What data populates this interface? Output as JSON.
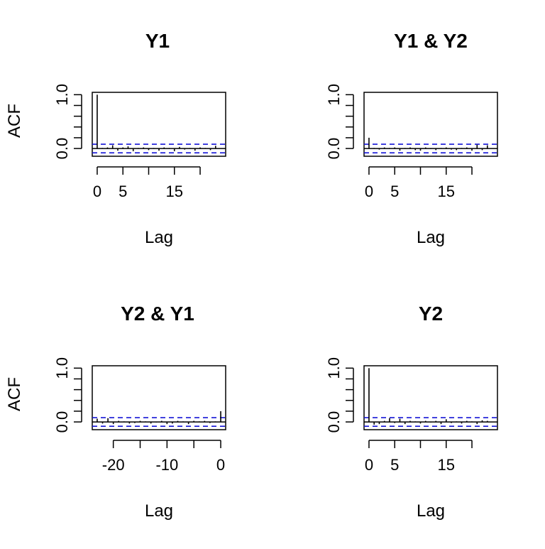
{
  "chart_data": [
    {
      "type": "bar",
      "title": "Y1",
      "xlabel": "Lag",
      "ylabel": "ACF",
      "xlim": [
        0,
        24
      ],
      "ylim": [
        -0.1,
        1.0
      ],
      "xticks": [
        0,
        5,
        10,
        15,
        20
      ],
      "xtick_labels": [
        "0",
        "5",
        "",
        "15",
        ""
      ],
      "yticks": [
        0.0,
        0.2,
        0.4,
        0.6,
        0.8,
        1.0
      ],
      "ytick_labels": [
        "0.0",
        "",
        "",
        "",
        "",
        "1.0"
      ],
      "conf_limit": 0.08,
      "lags": [
        0,
        1,
        2,
        3,
        4,
        5,
        6,
        7,
        8,
        9,
        10,
        11,
        12,
        13,
        14,
        15,
        16,
        17,
        18,
        19,
        20,
        21,
        22,
        23
      ],
      "values": [
        1.0,
        0.01,
        0.02,
        0.06,
        -0.04,
        0.02,
        0.04,
        -0.05,
        0.01,
        0.02,
        -0.03,
        0.01,
        -0.04,
        0.02,
        0.01,
        -0.05,
        0.03,
        -0.02,
        0.01,
        -0.04,
        0.02,
        0.01,
        -0.03,
        0.05
      ]
    },
    {
      "type": "bar",
      "title": "Y1 & Y2",
      "xlabel": "Lag",
      "ylabel": "",
      "xlim": [
        0,
        24
      ],
      "ylim": [
        -0.1,
        1.0
      ],
      "xticks": [
        0,
        5,
        10,
        15,
        20
      ],
      "xtick_labels": [
        "0",
        "5",
        "",
        "15",
        ""
      ],
      "yticks": [
        0.0,
        0.2,
        0.4,
        0.6,
        0.8,
        1.0
      ],
      "ytick_labels": [
        "0.0",
        "",
        "",
        "",
        "",
        "1.0"
      ],
      "conf_limit": 0.08,
      "lags": [
        0,
        1,
        2,
        3,
        4,
        5,
        6,
        7,
        8,
        9,
        10,
        11,
        12,
        13,
        14,
        15,
        16,
        17,
        18,
        19,
        20,
        21,
        22,
        23
      ],
      "values": [
        0.2,
        0.01,
        -0.02,
        0.02,
        0.01,
        0.02,
        -0.04,
        0.01,
        0.02,
        -0.03,
        -0.04,
        0.02,
        -0.01,
        -0.03,
        0.01,
        0.02,
        -0.02,
        -0.03,
        0.01,
        0.02,
        -0.04,
        0.07,
        -0.03,
        0.06
      ]
    },
    {
      "type": "bar",
      "title": "Y2 & Y1",
      "xlabel": "Lag",
      "ylabel": "ACF",
      "xlim": [
        -23,
        0
      ],
      "ylim": [
        -0.1,
        1.0
      ],
      "xticks": [
        -20,
        -15,
        -10,
        -5,
        0
      ],
      "xtick_labels": [
        "-20",
        "",
        "-10",
        "",
        "0"
      ],
      "yticks": [
        0.0,
        0.2,
        0.4,
        0.6,
        0.8,
        1.0
      ],
      "ytick_labels": [
        "0.0",
        "",
        "",
        "",
        "",
        "1.0"
      ],
      "conf_limit": 0.08,
      "lags": [
        -23,
        -22,
        -21,
        -20,
        -19,
        -18,
        -17,
        -16,
        -15,
        -14,
        -13,
        -12,
        -11,
        -10,
        -9,
        -8,
        -7,
        -6,
        -5,
        -4,
        -3,
        -2,
        -1,
        0
      ],
      "values": [
        0.06,
        -0.03,
        0.07,
        -0.04,
        0.02,
        0.01,
        -0.03,
        -0.02,
        0.02,
        0.01,
        -0.03,
        -0.01,
        0.02,
        -0.04,
        -0.03,
        0.02,
        0.01,
        -0.04,
        0.02,
        0.01,
        0.02,
        -0.02,
        0.01,
        0.2
      ]
    },
    {
      "type": "bar",
      "title": "Y2",
      "xlabel": "Lag",
      "ylabel": "",
      "xlim": [
        0,
        24
      ],
      "ylim": [
        -0.1,
        1.0
      ],
      "xticks": [
        0,
        5,
        10,
        15,
        20
      ],
      "xtick_labels": [
        "0",
        "5",
        "",
        "15",
        ""
      ],
      "yticks": [
        0.0,
        0.2,
        0.4,
        0.6,
        0.8,
        1.0
      ],
      "ytick_labels": [
        "0.0",
        "",
        "",
        "",
        "",
        "1.0"
      ],
      "conf_limit": 0.08,
      "lags": [
        0,
        1,
        2,
        3,
        4,
        5,
        6,
        7,
        8,
        9,
        10,
        11,
        12,
        13,
        14,
        15,
        16,
        17,
        18,
        19,
        20,
        21,
        22,
        23
      ],
      "values": [
        1.0,
        -0.05,
        -0.04,
        0.02,
        0.07,
        -0.02,
        0.06,
        -0.04,
        0.02,
        0.01,
        -0.03,
        0.02,
        -0.01,
        0.02,
        -0.04,
        0.05,
        -0.02,
        0.01,
        -0.03,
        0.02,
        0.01,
        -0.04,
        0.03,
        0.02
      ]
    }
  ]
}
